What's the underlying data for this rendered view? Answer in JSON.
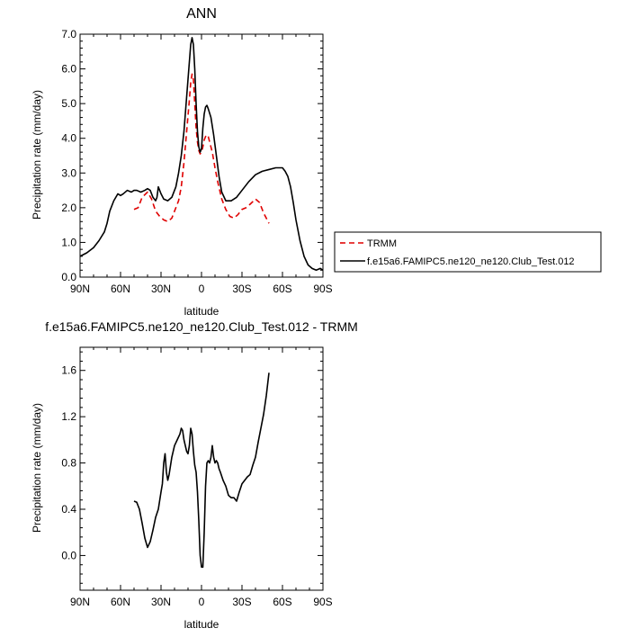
{
  "chart_data": [
    {
      "type": "line",
      "title": "ANN",
      "xlabel": "latitude",
      "ylabel": "Precipitation rate (mm/day)",
      "xlim": [
        90,
        -90
      ],
      "ylim": [
        0.0,
        7.0
      ],
      "xticks": [
        90,
        60,
        30,
        0,
        -30,
        -60,
        -90
      ],
      "xtick_labels": [
        "90N",
        "60N",
        "30N",
        "0",
        "30S",
        "60S",
        "90S"
      ],
      "yticks": [
        0,
        1,
        2,
        3,
        4,
        5,
        6,
        7
      ],
      "ytick_labels": [
        "0.0",
        "1.0",
        "2.0",
        "3.0",
        "4.0",
        "5.0",
        "6.0",
        "7.0"
      ],
      "legend_position": "outside-right",
      "series": [
        {
          "name": "TRMM",
          "color": "#e00000",
          "dash": "dashed",
          "x": [
            50,
            47,
            44,
            40,
            37,
            34,
            31,
            28,
            25,
            22,
            19,
            17,
            15,
            13,
            11,
            9,
            8,
            7,
            6,
            5,
            4,
            3,
            2,
            1,
            0,
            -1,
            -2,
            -3,
            -4,
            -5,
            -6,
            -8,
            -10,
            -12,
            -15,
            -18,
            -21,
            -24,
            -27,
            -30,
            -33,
            -36,
            -40,
            -43,
            -46,
            -50
          ],
          "y": [
            1.95,
            2.0,
            2.3,
            2.45,
            2.25,
            1.9,
            1.75,
            1.65,
            1.6,
            1.7,
            2.0,
            2.2,
            2.6,
            3.3,
            4.2,
            5.1,
            5.6,
            5.85,
            5.7,
            5.0,
            4.3,
            3.9,
            3.65,
            3.55,
            3.6,
            3.75,
            3.95,
            4.05,
            4.1,
            4.05,
            3.9,
            3.6,
            3.15,
            2.75,
            2.25,
            1.95,
            1.75,
            1.7,
            1.8,
            1.95,
            2.0,
            2.1,
            2.25,
            2.15,
            1.85,
            1.55
          ]
        },
        {
          "name": "f.e15a6.FAMIPC5.ne120_ne120.Club_Test.012",
          "color": "#000000",
          "dash": "solid",
          "x": [
            90,
            85,
            80,
            76,
            72,
            70,
            68,
            65,
            62,
            60,
            58,
            55,
            52,
            50,
            48,
            45,
            42,
            40,
            38,
            36,
            34,
            33,
            32,
            30,
            28,
            25,
            22,
            19,
            17,
            15,
            13,
            11,
            9,
            8,
            7,
            6,
            5,
            4,
            3,
            2,
            1,
            0,
            -1,
            -2,
            -3,
            -4,
            -5,
            -7,
            -9,
            -11,
            -13,
            -15,
            -18,
            -22,
            -26,
            -30,
            -35,
            -40,
            -45,
            -50,
            -55,
            -58,
            -60,
            -62,
            -64,
            -66,
            -68,
            -70,
            -73,
            -76,
            -79,
            -82,
            -85,
            -88,
            -90
          ],
          "y": [
            0.6,
            0.7,
            0.85,
            1.05,
            1.3,
            1.55,
            1.9,
            2.2,
            2.4,
            2.35,
            2.4,
            2.5,
            2.45,
            2.5,
            2.5,
            2.45,
            2.5,
            2.55,
            2.5,
            2.3,
            2.2,
            2.3,
            2.6,
            2.4,
            2.25,
            2.2,
            2.3,
            2.6,
            3.0,
            3.5,
            4.2,
            5.2,
            6.2,
            6.7,
            6.9,
            6.7,
            6.0,
            5.0,
            4.2,
            3.75,
            3.6,
            3.7,
            4.3,
            4.7,
            4.9,
            4.95,
            4.85,
            4.6,
            4.1,
            3.5,
            2.9,
            2.45,
            2.2,
            2.2,
            2.3,
            2.5,
            2.75,
            2.95,
            3.05,
            3.1,
            3.15,
            3.15,
            3.15,
            3.05,
            2.9,
            2.6,
            2.15,
            1.65,
            1.05,
            0.6,
            0.35,
            0.25,
            0.2,
            0.25,
            0.2
          ]
        }
      ]
    },
    {
      "type": "line",
      "title": "f.e15a6.FAMIPC5.ne120_ne120.Club_Test.012 - TRMM",
      "xlabel": "latitude",
      "ylabel": "Precipitation rate (mm/day)",
      "xlim": [
        90,
        -90
      ],
      "ylim": [
        -0.3,
        1.8
      ],
      "xticks": [
        90,
        60,
        30,
        0,
        -30,
        -60,
        -90
      ],
      "xtick_labels": [
        "90N",
        "60N",
        "30N",
        "0",
        "30S",
        "60S",
        "90S"
      ],
      "yticks": [
        0.0,
        0.4,
        0.8,
        1.2,
        1.6
      ],
      "ytick_labels": [
        "0.0",
        "0.4",
        "0.8",
        "1.2",
        "1.6"
      ],
      "series": [
        {
          "color": "#000000",
          "dash": "solid",
          "x": [
            50,
            48,
            46,
            44,
            42,
            40,
            38,
            36,
            34,
            32,
            30,
            29,
            28,
            27,
            26,
            25,
            24,
            22,
            20,
            18,
            16,
            15,
            14,
            13,
            12,
            11,
            10,
            9,
            8,
            7,
            6,
            5,
            4,
            3,
            2,
            1,
            0,
            -1,
            -2,
            -3,
            -4,
            -5,
            -6,
            -7,
            -8,
            -9,
            -10,
            -11,
            -12,
            -13,
            -14,
            -16,
            -18,
            -20,
            -22,
            -24,
            -26,
            -28,
            -30,
            -32,
            -34,
            -36,
            -38,
            -40,
            -42,
            -44,
            -46,
            -48,
            -50
          ],
          "y": [
            0.47,
            0.46,
            0.4,
            0.28,
            0.15,
            0.07,
            0.12,
            0.22,
            0.33,
            0.4,
            0.55,
            0.62,
            0.8,
            0.88,
            0.72,
            0.65,
            0.7,
            0.85,
            0.95,
            1.0,
            1.05,
            1.1,
            1.08,
            1.0,
            0.95,
            0.9,
            0.88,
            0.95,
            1.1,
            1.05,
            0.9,
            0.78,
            0.72,
            0.55,
            0.3,
            0.0,
            -0.1,
            -0.1,
            0.2,
            0.6,
            0.8,
            0.82,
            0.8,
            0.85,
            0.95,
            0.85,
            0.8,
            0.82,
            0.8,
            0.75,
            0.72,
            0.65,
            0.6,
            0.52,
            0.5,
            0.5,
            0.47,
            0.55,
            0.62,
            0.65,
            0.68,
            0.7,
            0.78,
            0.85,
            0.98,
            1.1,
            1.22,
            1.38,
            1.58
          ]
        }
      ]
    }
  ]
}
